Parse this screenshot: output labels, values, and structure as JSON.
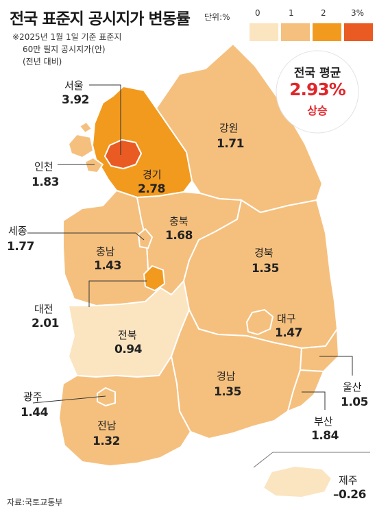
{
  "title": "전국 표준지 공시지가 변동률",
  "unit": "단위:%",
  "legend": [
    {
      "label": "0",
      "color": "#fbe4c0"
    },
    {
      "label": "1",
      "color": "#f5c07e"
    },
    {
      "label": "2",
      "color": "#f29a1e"
    },
    {
      "label": "3%",
      "color": "#ea5a23"
    }
  ],
  "notes": [
    "※2025년 1월 1일 기준 표준지",
    "60만 필지 공시지가(안)",
    "(전년 대비)"
  ],
  "national_average": {
    "title": "전국 평균",
    "value": "2.93%",
    "trend": "상승"
  },
  "regions": {
    "seoul": {
      "name": "서울",
      "value": "3.92",
      "color": "#ea5a23"
    },
    "incheon": {
      "name": "인천",
      "value": "1.83",
      "color": "#f5c07e"
    },
    "gyeonggi": {
      "name": "경기",
      "value": "2.78",
      "color": "#f29a1e"
    },
    "gangwon": {
      "name": "강원",
      "value": "1.71",
      "color": "#f5c07e"
    },
    "sejong": {
      "name": "세종",
      "value": "1.77",
      "color": "#f5c07e"
    },
    "chungbuk": {
      "name": "충북",
      "value": "1.68",
      "color": "#f5c07e"
    },
    "chungnam": {
      "name": "충남",
      "value": "1.43",
      "color": "#f5c07e"
    },
    "gyeongbuk": {
      "name": "경북",
      "value": "1.35",
      "color": "#f5c07e"
    },
    "daejeon": {
      "name": "대전",
      "value": "2.01",
      "color": "#f29a1e"
    },
    "daegu": {
      "name": "대구",
      "value": "1.47",
      "color": "#f5c07e"
    },
    "jeonbuk": {
      "name": "전북",
      "value": "0.94",
      "color": "#fbe4c0"
    },
    "gyeongnam": {
      "name": "경남",
      "value": "1.35",
      "color": "#f5c07e"
    },
    "ulsan": {
      "name": "울산",
      "value": "1.05",
      "color": "#f5c07e"
    },
    "gwangju": {
      "name": "광주",
      "value": "1.44",
      "color": "#f5c07e"
    },
    "busan": {
      "name": "부산",
      "value": "1.84",
      "color": "#f5c07e"
    },
    "jeonnam": {
      "name": "전남",
      "value": "1.32",
      "color": "#f5c07e"
    },
    "jeju": {
      "name": "제주",
      "value": "–0.26",
      "color": "#fbe4c0"
    }
  },
  "source": "자료:국토교통부"
}
